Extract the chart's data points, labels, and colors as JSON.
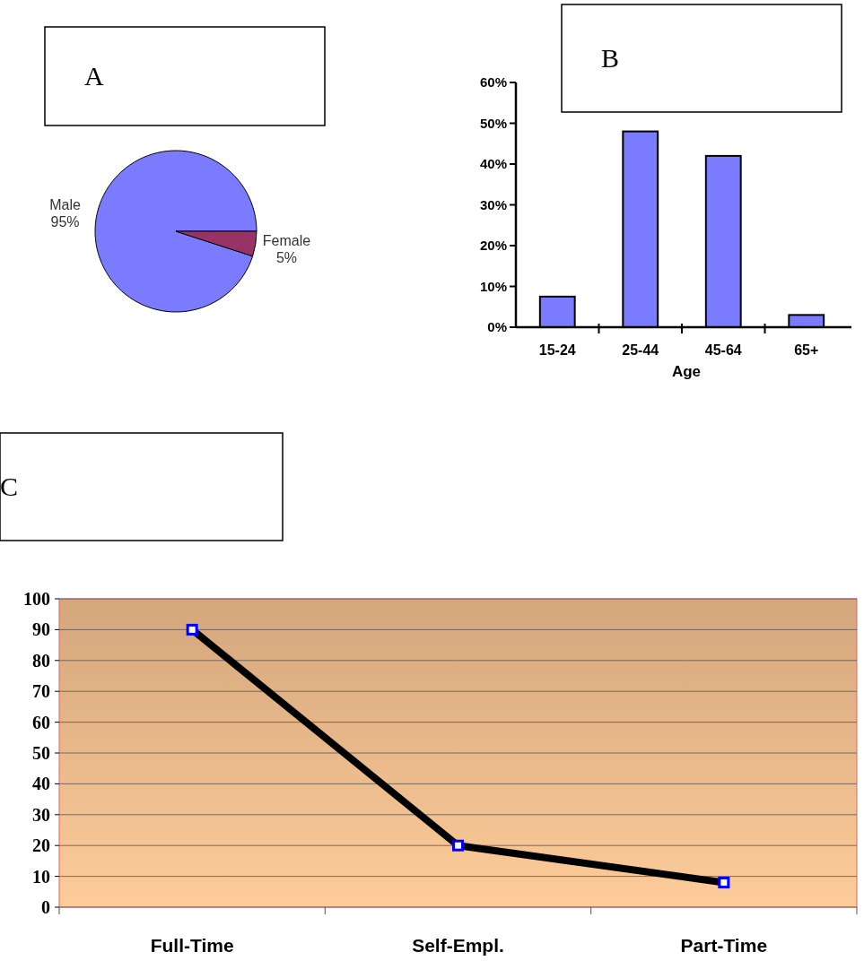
{
  "chart_data": [
    {
      "type": "pie",
      "title": "A",
      "categories": [
        "Male",
        "Female"
      ],
      "values": [
        95,
        5
      ],
      "colors": [
        "#7b7bff",
        "#993366"
      ],
      "value_labels": [
        "95%",
        "5%"
      ]
    },
    {
      "type": "bar",
      "title": "B",
      "xlabel": "Age",
      "categories": [
        "15-24",
        "25-44",
        "45-64",
        "65+"
      ],
      "values": [
        7.5,
        48,
        42,
        3
      ],
      "color": "#7b7bff",
      "ylim": [
        0,
        60
      ],
      "yticks": [
        {
          "value": 0,
          "label": "0%"
        },
        {
          "value": 10,
          "label": "10%"
        },
        {
          "value": 20,
          "label": "20%"
        },
        {
          "value": 30,
          "label": "30%"
        },
        {
          "value": 40,
          "label": "40%"
        },
        {
          "value": 50,
          "label": "50%"
        },
        {
          "value": 60,
          "label": "60%"
        }
      ],
      "grid": false
    },
    {
      "type": "line",
      "title": "C",
      "categories": [
        "Full-Time",
        "Self-Empl.",
        "Part-Time"
      ],
      "series": [
        {
          "color": "#000000",
          "values": [
            90,
            20,
            8
          ]
        }
      ],
      "ylim": [
        0,
        100
      ],
      "yticks": [
        0,
        10,
        20,
        30,
        40,
        50,
        60,
        70,
        80,
        90,
        100
      ],
      "grid": "y",
      "marker": "square"
    }
  ]
}
